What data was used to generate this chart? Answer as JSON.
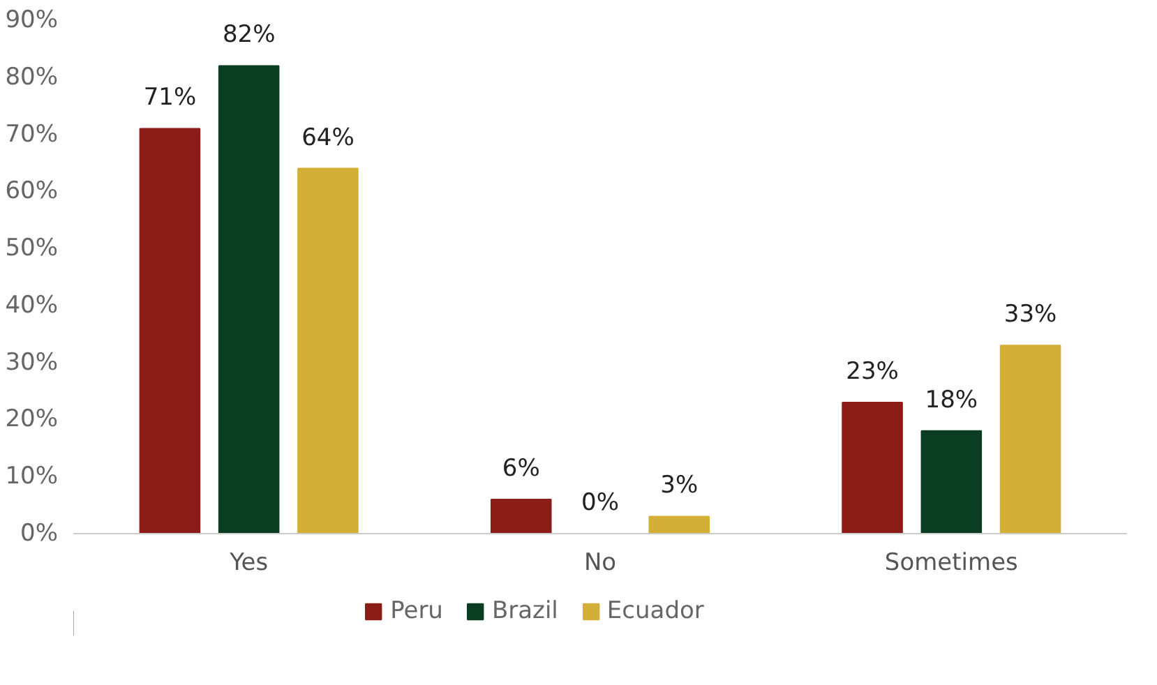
{
  "chart_data": {
    "type": "bar",
    "categories": [
      "Yes",
      "No",
      "Sometimes"
    ],
    "series": [
      {
        "name": "Peru",
        "color": "#8c1c17",
        "values": [
          71,
          6,
          23
        ],
        "value_labels": [
          "71%",
          "6%",
          "23%"
        ]
      },
      {
        "name": "Brazil",
        "color": "#0b3d22",
        "values": [
          82,
          0,
          18
        ],
        "value_labels": [
          "82%",
          "0%",
          "18%"
        ]
      },
      {
        "name": "Ecuador",
        "color": "#d4af37",
        "values": [
          64,
          3,
          33
        ],
        "value_labels": [
          "64%",
          "3%",
          "33%"
        ]
      }
    ],
    "ylim": [
      0,
      90
    ],
    "yticks": [
      {
        "value": 0,
        "label": "0%"
      },
      {
        "value": 10,
        "label": "10%"
      },
      {
        "value": 20,
        "label": "20%"
      },
      {
        "value": 30,
        "label": "30%"
      },
      {
        "value": 40,
        "label": "40%"
      },
      {
        "value": 50,
        "label": "50%"
      },
      {
        "value": 60,
        "label": "60%"
      },
      {
        "value": 70,
        "label": "70%"
      },
      {
        "value": 80,
        "label": "80%"
      },
      {
        "value": 90,
        "label": "90%"
      }
    ],
    "grid": false,
    "legend": "bottom"
  }
}
